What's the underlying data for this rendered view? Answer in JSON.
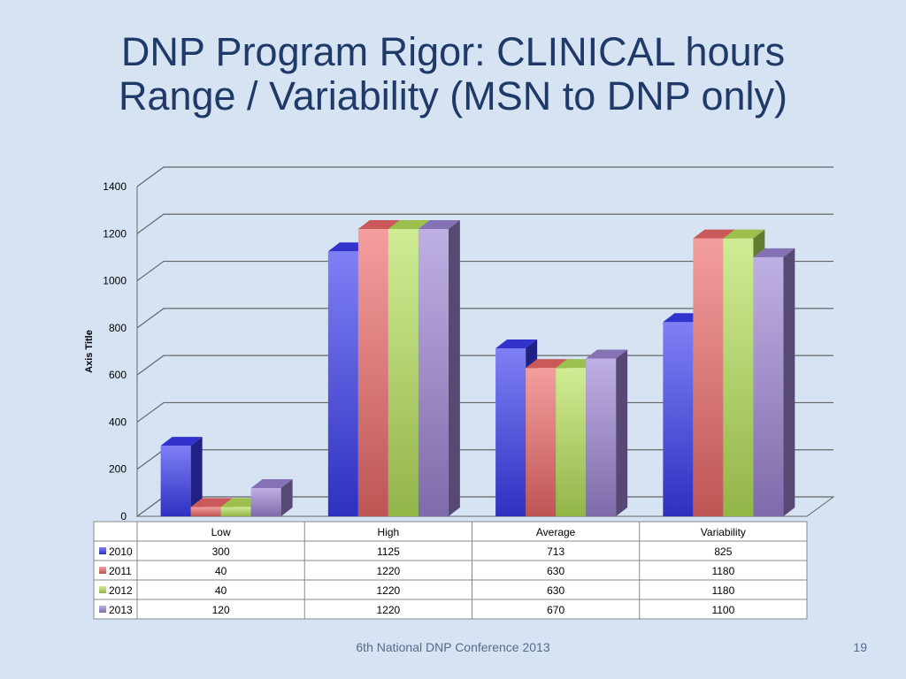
{
  "slide": {
    "title_line1": "DNP Program Rigor: CLINICAL hours",
    "title_line2": "Range / Variability (MSN to DNP only)",
    "footer": "6th National DNP Conference  2013",
    "page_number": "19"
  },
  "chart_data": {
    "type": "bar",
    "ylabel": "Axis Title",
    "ylim": [
      0,
      1400
    ],
    "yticks": [
      0,
      200,
      400,
      600,
      800,
      1000,
      1200,
      1400
    ],
    "categories": [
      "Low",
      "High",
      "Average",
      "Variability"
    ],
    "series": [
      {
        "name": "2010",
        "values": [
          300,
          1125,
          713,
          825
        ],
        "color": "#3a3cf0"
      },
      {
        "name": "2011",
        "values": [
          40,
          1220,
          630,
          1180
        ],
        "color": "#ee6a6a"
      },
      {
        "name": "2012",
        "values": [
          40,
          1220,
          630,
          1180
        ],
        "color": "#b6e25a"
      },
      {
        "name": "2013",
        "values": [
          120,
          1220,
          670,
          1100
        ],
        "color": "#9d86d4"
      }
    ],
    "grid": true,
    "data_table": true
  }
}
